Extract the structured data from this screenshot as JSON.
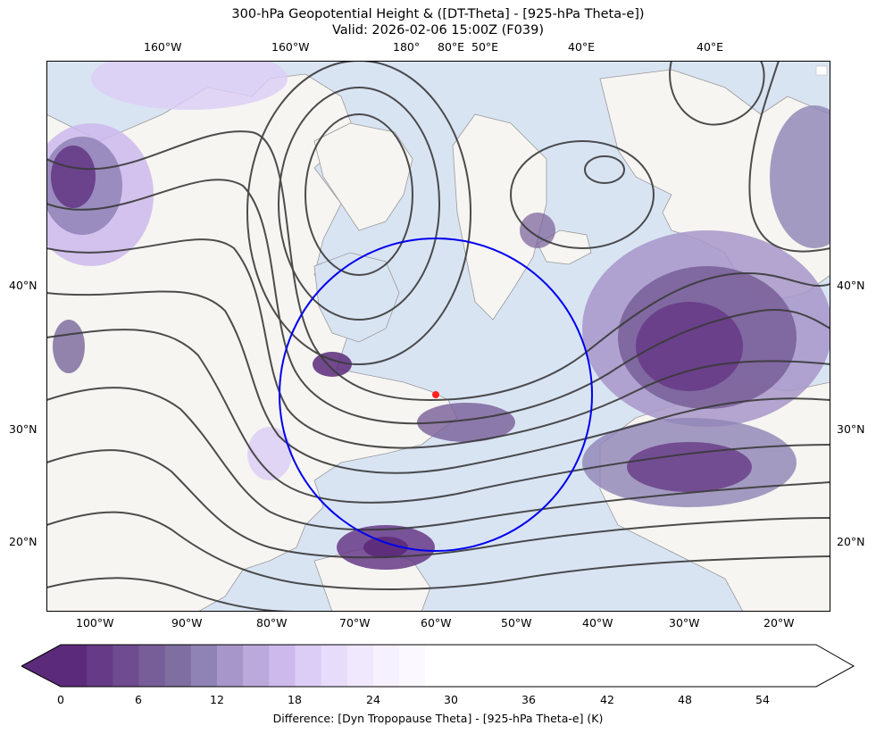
{
  "title_line1": "300-hPa Geopotential Height & ([DT-Theta] - [925-hPa Theta-e])",
  "title_line2": "Valid: 2026-02-06 15:00Z (F039)",
  "top_lon_labels": [
    "160°W",
    "160°W",
    "180°",
    "80°E",
    "50°E",
    "40°E",
    "40°E"
  ],
  "left_lat_labels": [
    "40°N",
    "30°N",
    "20°N"
  ],
  "right_lat_labels": [
    "40°N",
    "30°N",
    "20°N"
  ],
  "bottom_lon_labels": [
    "100°W",
    "90°W",
    "80°W",
    "70°W",
    "60°W",
    "50°W",
    "40°W",
    "30°W",
    "20°W"
  ],
  "colorbar": {
    "ticks": [
      "0",
      "6",
      "12",
      "18",
      "24",
      "30",
      "36",
      "42",
      "48",
      "54"
    ],
    "label": "Difference: [Dyn Tropopause Theta] - [925-hPa Theta-e] (K)",
    "colors": [
      "#5b2a7a",
      "#663a86",
      "#6f4c8f",
      "#785e98",
      "#7f6ea0",
      "#8f83b5",
      "#a796c9",
      "#bba9dc",
      "#cdb9ec",
      "#dccdf6",
      "#e8dcfb",
      "#f0e8fd",
      "#f6f1fe",
      "#fbf9ff"
    ]
  },
  "colors": {
    "ocean": "#d9e4f3",
    "land": "#f6f5f1",
    "contour": "#3a3a3a",
    "circle": "#0000ee",
    "marker": "#ff2020"
  },
  "legend_box_present": true
}
